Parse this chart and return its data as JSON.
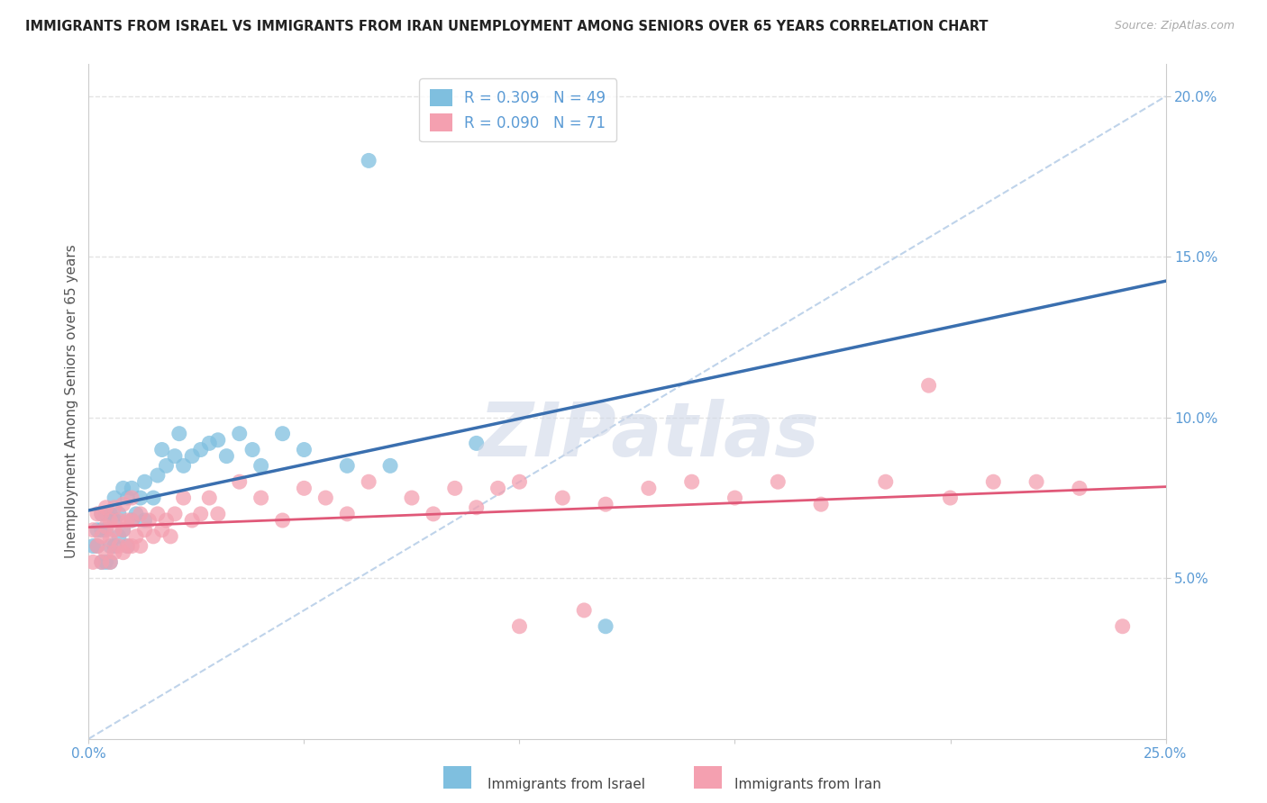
{
  "title": "IMMIGRANTS FROM ISRAEL VS IMMIGRANTS FROM IRAN UNEMPLOYMENT AMONG SENIORS OVER 65 YEARS CORRELATION CHART",
  "source": "Source: ZipAtlas.com",
  "ylabel": "Unemployment Among Seniors over 65 years",
  "xlim": [
    0.0,
    0.25
  ],
  "ylim": [
    0.0,
    0.21
  ],
  "xticks": [
    0.0,
    0.05,
    0.1,
    0.15,
    0.2,
    0.25
  ],
  "xticklabels": [
    "0.0%",
    "",
    "",
    "",
    "",
    "25.0%"
  ],
  "yticks": [
    0.05,
    0.1,
    0.15,
    0.2
  ],
  "yticklabels": [
    "5.0%",
    "10.0%",
    "15.0%",
    "20.0%"
  ],
  "israel_color": "#7fbfdf",
  "iran_color": "#f4a0b0",
  "israel_line_color": "#3a6faf",
  "iran_line_color": "#e05878",
  "ref_line_color": "#b8cfe8",
  "legend_israel_r": "R = 0.309",
  "legend_israel_n": "N = 49",
  "legend_iran_r": "R = 0.090",
  "legend_iran_n": "N = 71",
  "israel_x": [
    0.001,
    0.002,
    0.002,
    0.003,
    0.003,
    0.003,
    0.004,
    0.004,
    0.004,
    0.005,
    0.005,
    0.005,
    0.006,
    0.006,
    0.006,
    0.007,
    0.007,
    0.008,
    0.008,
    0.009,
    0.009,
    0.01,
    0.01,
    0.011,
    0.012,
    0.013,
    0.013,
    0.015,
    0.016,
    0.017,
    0.018,
    0.02,
    0.021,
    0.022,
    0.024,
    0.026,
    0.028,
    0.03,
    0.032,
    0.035,
    0.038,
    0.04,
    0.045,
    0.05,
    0.06,
    0.065,
    0.07,
    0.09,
    0.12
  ],
  "israel_y": [
    0.06,
    0.06,
    0.065,
    0.055,
    0.065,
    0.07,
    0.055,
    0.065,
    0.07,
    0.055,
    0.06,
    0.07,
    0.06,
    0.068,
    0.075,
    0.063,
    0.07,
    0.065,
    0.078,
    0.06,
    0.075,
    0.068,
    0.078,
    0.07,
    0.075,
    0.068,
    0.08,
    0.075,
    0.082,
    0.09,
    0.085,
    0.088,
    0.095,
    0.085,
    0.088,
    0.09,
    0.092,
    0.093,
    0.088,
    0.095,
    0.09,
    0.085,
    0.095,
    0.09,
    0.085,
    0.18,
    0.085,
    0.092,
    0.035
  ],
  "iran_x": [
    0.001,
    0.001,
    0.002,
    0.002,
    0.003,
    0.003,
    0.003,
    0.004,
    0.004,
    0.004,
    0.005,
    0.005,
    0.005,
    0.006,
    0.006,
    0.006,
    0.007,
    0.007,
    0.008,
    0.008,
    0.008,
    0.009,
    0.009,
    0.01,
    0.01,
    0.01,
    0.011,
    0.012,
    0.012,
    0.013,
    0.014,
    0.015,
    0.016,
    0.017,
    0.018,
    0.019,
    0.02,
    0.022,
    0.024,
    0.026,
    0.028,
    0.03,
    0.035,
    0.04,
    0.045,
    0.05,
    0.055,
    0.06,
    0.065,
    0.075,
    0.08,
    0.085,
    0.09,
    0.095,
    0.1,
    0.11,
    0.12,
    0.13,
    0.14,
    0.15,
    0.16,
    0.17,
    0.185,
    0.195,
    0.2,
    0.21,
    0.22,
    0.23,
    0.24,
    0.1,
    0.115
  ],
  "iran_y": [
    0.055,
    0.065,
    0.06,
    0.07,
    0.055,
    0.063,
    0.07,
    0.058,
    0.066,
    0.072,
    0.055,
    0.062,
    0.068,
    0.058,
    0.065,
    0.072,
    0.06,
    0.068,
    0.058,
    0.065,
    0.073,
    0.06,
    0.068,
    0.06,
    0.068,
    0.075,
    0.063,
    0.06,
    0.07,
    0.065,
    0.068,
    0.063,
    0.07,
    0.065,
    0.068,
    0.063,
    0.07,
    0.075,
    0.068,
    0.07,
    0.075,
    0.07,
    0.08,
    0.075,
    0.068,
    0.078,
    0.075,
    0.07,
    0.08,
    0.075,
    0.07,
    0.078,
    0.072,
    0.078,
    0.08,
    0.075,
    0.073,
    0.078,
    0.08,
    0.075,
    0.08,
    0.073,
    0.08,
    0.11,
    0.075,
    0.08,
    0.08,
    0.078,
    0.035,
    0.035,
    0.04
  ],
  "background_color": "#ffffff",
  "grid_color": "#dddddd",
  "watermark": "ZIPatlas",
  "watermark_color": "#d0d8e8",
  "tick_color": "#5b9bd5",
  "ytick_right_color": "#5b9bd5"
}
